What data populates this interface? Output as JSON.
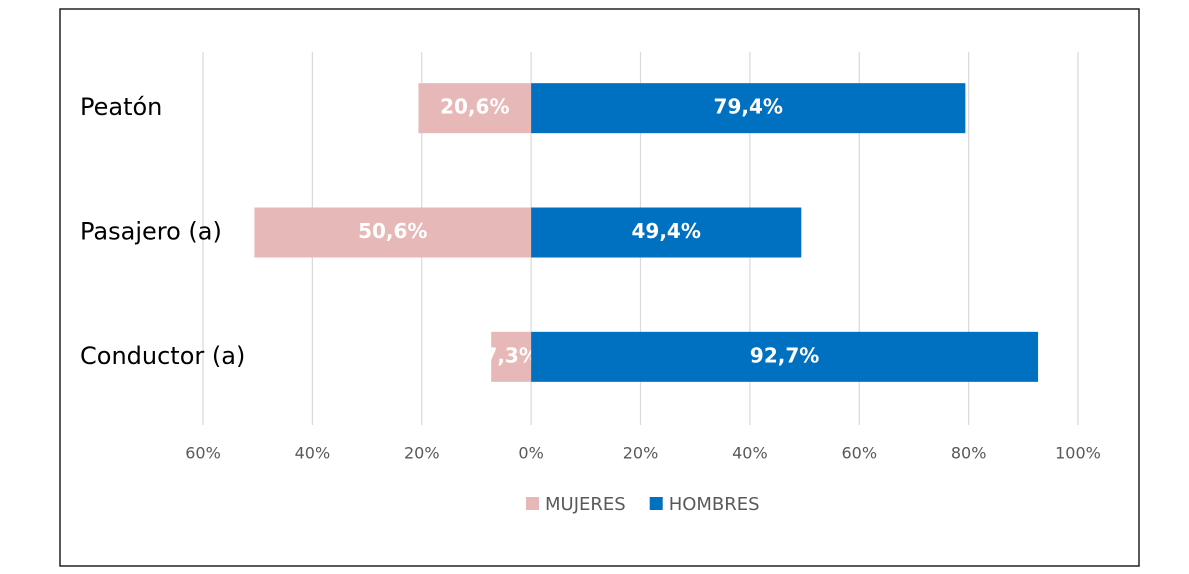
{
  "chart_data": {
    "type": "bar",
    "orientation": "horizontal",
    "stacked": true,
    "categories": [
      "Peatón",
      "Pasajero (a)",
      "Conductor (a)"
    ],
    "series": [
      {
        "name": "MUJERES",
        "color": "#e6b9b8",
        "values": [
          -20.6,
          -50.6,
          -7.3
        ],
        "value_labels": [
          "20,6%",
          "50,6%",
          "7,3%"
        ]
      },
      {
        "name": "HOMBRES",
        "color": "#0070c0",
        "values": [
          79.4,
          49.4,
          92.7
        ],
        "value_labels": [
          "79,4%",
          "49,4%",
          "92,7%"
        ]
      }
    ],
    "xlim": [
      -60,
      100
    ],
    "xticks": [
      {
        "value": -60,
        "label": "60%"
      },
      {
        "value": -40,
        "label": "40%"
      },
      {
        "value": -20,
        "label": "20%"
      },
      {
        "value": 0,
        "label": "0%"
      },
      {
        "value": 20,
        "label": "20%"
      },
      {
        "value": 40,
        "label": "40%"
      },
      {
        "value": 60,
        "label": "60%"
      },
      {
        "value": 80,
        "label": "80%"
      },
      {
        "value": 100,
        "label": "100%"
      }
    ],
    "grid": true,
    "legend": "bottom"
  }
}
